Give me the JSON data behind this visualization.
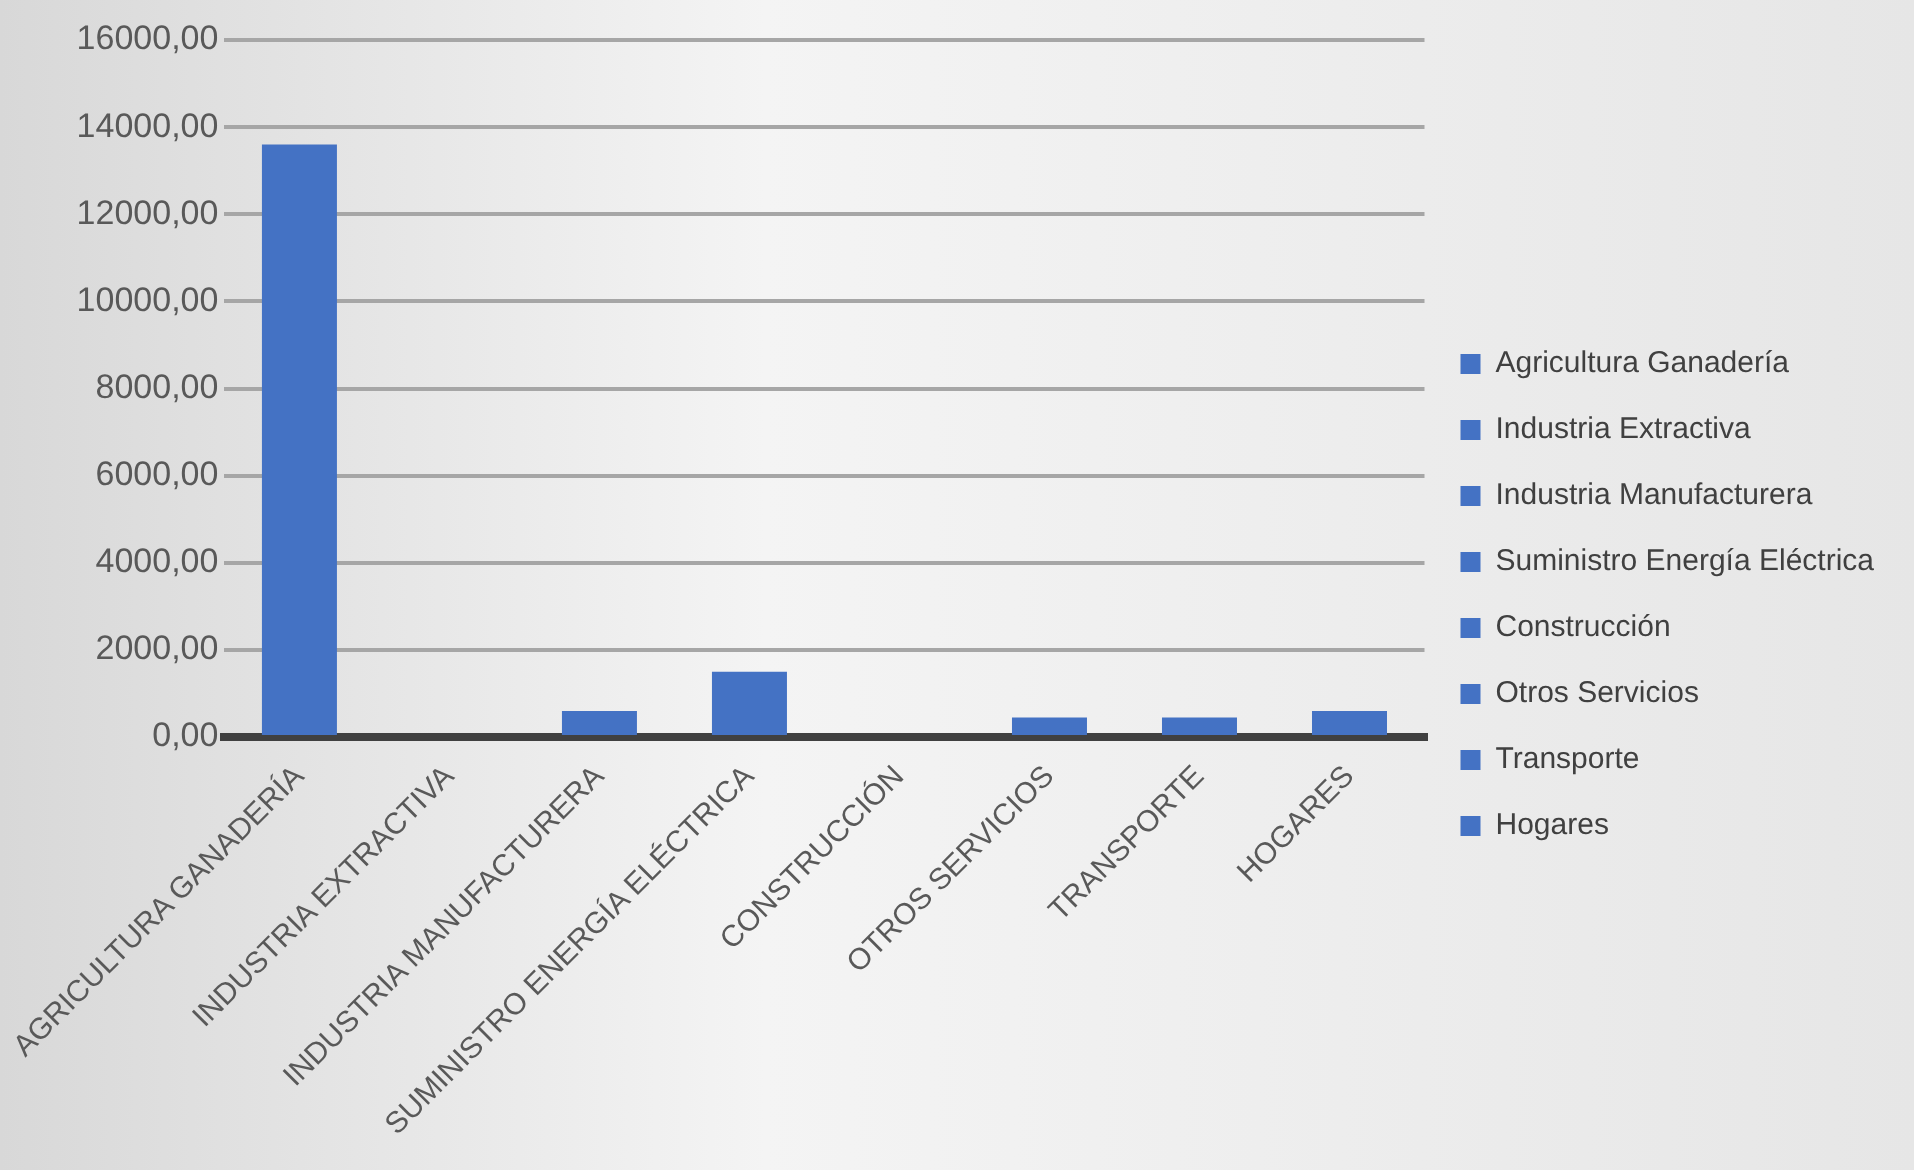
{
  "chart_data": {
    "type": "bar",
    "stacked": true,
    "categories": [
      "AGRICULTURA GANADERÍA",
      "INDUSTRIA EXTRACTIVA",
      "INDUSTRIA MANUFACTURERA",
      "SUMINISTRO ENERGÍA ELÉCTRICA",
      "CONSTRUCCIÓN",
      "OTROS SERVICIOS",
      "TRANSPORTE",
      "HOGARES"
    ],
    "series": [
      {
        "name": "Agricultura Ganadería",
        "color": "#4472c4",
        "values": [
          13600,
          null,
          null,
          null,
          null,
          null,
          null,
          null
        ]
      },
      {
        "name": "Industria Extractiva",
        "color": "#4472c4",
        "values": [
          null,
          0,
          null,
          null,
          null,
          null,
          null,
          null
        ]
      },
      {
        "name": "Industria Manufacturera",
        "color": "#4472c4",
        "values": [
          null,
          null,
          600,
          null,
          null,
          null,
          null,
          null
        ]
      },
      {
        "name": "Suministro Energía Eléctrica",
        "color": "#4472c4",
        "values": [
          null,
          null,
          null,
          1500,
          null,
          null,
          null,
          null
        ]
      },
      {
        "name": "Construcción",
        "color": "#4472c4",
        "values": [
          null,
          null,
          null,
          null,
          0,
          null,
          null,
          null
        ]
      },
      {
        "name": "Otros Servicios",
        "color": "#4472c4",
        "values": [
          null,
          null,
          null,
          null,
          null,
          450,
          null,
          null
        ]
      },
      {
        "name": "Transporte",
        "color": "#4472c4",
        "values": [
          null,
          null,
          null,
          null,
          null,
          null,
          450,
          null
        ]
      },
      {
        "name": "Hogares",
        "color": "#4472c4",
        "values": [
          null,
          null,
          null,
          null,
          null,
          null,
          null,
          600
        ]
      }
    ],
    "ylim": [
      0,
      16000
    ],
    "yticks": [
      {
        "value": 0,
        "label": "0,00"
      },
      {
        "value": 2000,
        "label": "2000,00"
      },
      {
        "value": 4000,
        "label": "4000,00"
      },
      {
        "value": 6000,
        "label": "6000,00"
      },
      {
        "value": 8000,
        "label": "8000,00"
      },
      {
        "value": 10000,
        "label": "10000,00"
      },
      {
        "value": 12000,
        "label": "12000,00"
      },
      {
        "value": 14000,
        "label": "14000,00"
      },
      {
        "value": 16000,
        "label": "16000,00"
      }
    ],
    "grid": "y",
    "legend": "right"
  }
}
